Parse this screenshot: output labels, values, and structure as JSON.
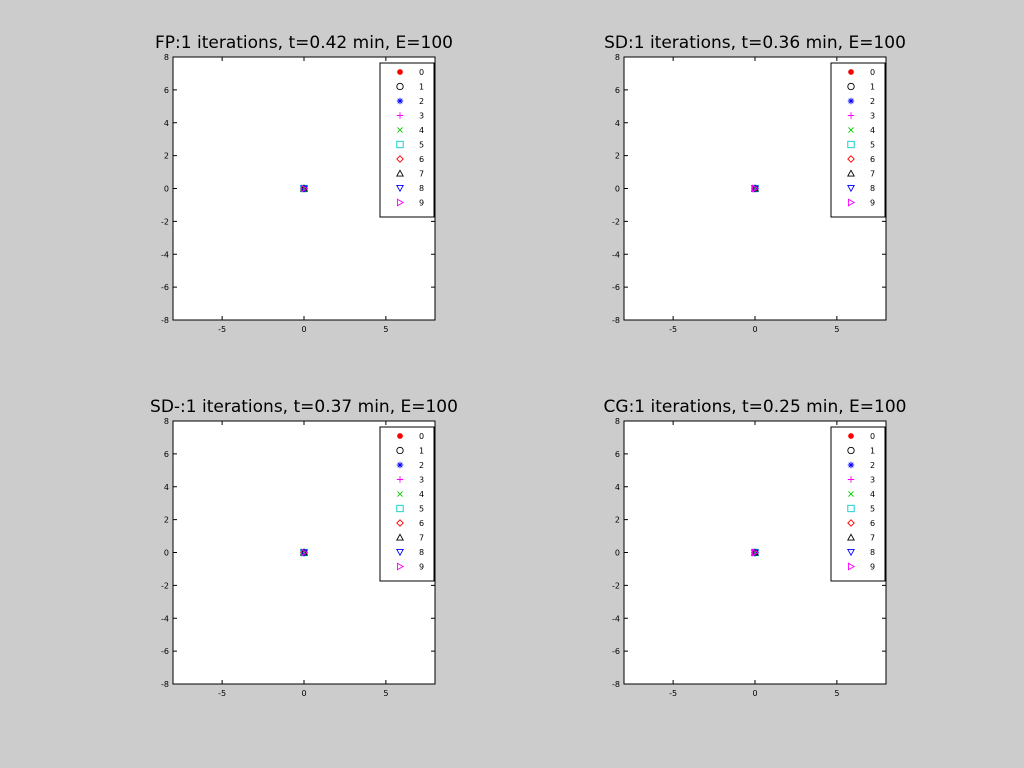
{
  "window": {
    "background": "#cccccc"
  },
  "chart_data": [
    {
      "type": "scatter",
      "title": "FP:1 iterations, t=0.42 min, E=100",
      "xlim": [
        -8,
        8
      ],
      "ylim": [
        -8,
        8
      ],
      "xticks": [
        -5,
        0,
        5
      ],
      "yticks": [
        8,
        6,
        4,
        2,
        0,
        -2,
        -4,
        -6,
        -8
      ],
      "grid": false,
      "legend_position": "top-right",
      "series": [
        {
          "name": "0",
          "marker": "filled-circle",
          "color": "#ff0000",
          "points": [
            [
              0,
              0
            ]
          ]
        },
        {
          "name": "1",
          "marker": "circle",
          "color": "#000000",
          "points": [
            [
              0,
              0
            ]
          ]
        },
        {
          "name": "2",
          "marker": "asterisk",
          "color": "#0000ff",
          "points": [
            [
              0,
              0
            ]
          ]
        },
        {
          "name": "3",
          "marker": "plus",
          "color": "#ff00ff",
          "points": [
            [
              0,
              0
            ]
          ]
        },
        {
          "name": "4",
          "marker": "cross",
          "color": "#00cc00",
          "points": [
            [
              0,
              0
            ]
          ]
        },
        {
          "name": "5",
          "marker": "square",
          "color": "#00cccc",
          "points": [
            [
              0,
              0
            ]
          ]
        },
        {
          "name": "6",
          "marker": "diamond",
          "color": "#ff0000",
          "points": [
            [
              0,
              0
            ]
          ]
        },
        {
          "name": "7",
          "marker": "triangle-up",
          "color": "#000000",
          "points": [
            [
              0,
              0
            ]
          ]
        },
        {
          "name": "8",
          "marker": "triangle-down",
          "color": "#0000ff",
          "points": [
            [
              0,
              0
            ]
          ]
        },
        {
          "name": "9",
          "marker": "triangle-right",
          "color": "#ff00ff",
          "points": [
            [
              0,
              0
            ]
          ]
        }
      ]
    },
    {
      "type": "scatter",
      "title": "SD:1 iterations, t=0.36 min, E=100",
      "xlim": [
        -8,
        8
      ],
      "ylim": [
        -8,
        8
      ],
      "xticks": [
        -5,
        0,
        5
      ],
      "yticks": [
        8,
        6,
        4,
        2,
        0,
        -2,
        -4,
        -6,
        -8
      ],
      "grid": false,
      "legend_position": "top-right",
      "series": [
        {
          "name": "0",
          "marker": "filled-circle",
          "color": "#ff0000",
          "points": [
            [
              0,
              0
            ]
          ]
        },
        {
          "name": "1",
          "marker": "circle",
          "color": "#000000",
          "points": [
            [
              0,
              0
            ]
          ]
        },
        {
          "name": "2",
          "marker": "asterisk",
          "color": "#0000ff",
          "points": [
            [
              0,
              0
            ]
          ]
        },
        {
          "name": "3",
          "marker": "plus",
          "color": "#ff00ff",
          "points": [
            [
              0,
              0
            ]
          ]
        },
        {
          "name": "4",
          "marker": "cross",
          "color": "#00cc00",
          "points": [
            [
              0,
              0
            ]
          ]
        },
        {
          "name": "5",
          "marker": "square",
          "color": "#00cccc",
          "points": [
            [
              0,
              0
            ]
          ]
        },
        {
          "name": "6",
          "marker": "diamond",
          "color": "#ff0000",
          "points": [
            [
              0,
              0
            ]
          ]
        },
        {
          "name": "7",
          "marker": "triangle-up",
          "color": "#000000",
          "points": [
            [
              0,
              0
            ]
          ]
        },
        {
          "name": "8",
          "marker": "triangle-down",
          "color": "#0000ff",
          "points": [
            [
              0,
              0
            ]
          ]
        },
        {
          "name": "9",
          "marker": "triangle-right",
          "color": "#ff00ff",
          "points": [
            [
              0,
              0
            ]
          ]
        }
      ]
    },
    {
      "type": "scatter",
      "title": "SD-:1 iterations, t=0.37 min, E=100",
      "xlim": [
        -8,
        8
      ],
      "ylim": [
        -8,
        8
      ],
      "xticks": [
        -5,
        0,
        5
      ],
      "yticks": [
        8,
        6,
        4,
        2,
        0,
        -2,
        -4,
        -6,
        -8
      ],
      "grid": false,
      "legend_position": "top-right",
      "series": [
        {
          "name": "0",
          "marker": "filled-circle",
          "color": "#ff0000",
          "points": [
            [
              0,
              0
            ]
          ]
        },
        {
          "name": "1",
          "marker": "circle",
          "color": "#000000",
          "points": [
            [
              0,
              0
            ]
          ]
        },
        {
          "name": "2",
          "marker": "asterisk",
          "color": "#0000ff",
          "points": [
            [
              0,
              0
            ]
          ]
        },
        {
          "name": "3",
          "marker": "plus",
          "color": "#ff00ff",
          "points": [
            [
              0,
              0
            ]
          ]
        },
        {
          "name": "4",
          "marker": "cross",
          "color": "#00cc00",
          "points": [
            [
              0,
              0
            ]
          ]
        },
        {
          "name": "5",
          "marker": "square",
          "color": "#00cccc",
          "points": [
            [
              0,
              0
            ]
          ]
        },
        {
          "name": "6",
          "marker": "diamond",
          "color": "#ff0000",
          "points": [
            [
              0,
              0
            ]
          ]
        },
        {
          "name": "7",
          "marker": "triangle-up",
          "color": "#000000",
          "points": [
            [
              0,
              0
            ]
          ]
        },
        {
          "name": "8",
          "marker": "triangle-down",
          "color": "#0000ff",
          "points": [
            [
              0,
              0
            ]
          ]
        },
        {
          "name": "9",
          "marker": "triangle-right",
          "color": "#ff00ff",
          "points": [
            [
              0,
              0
            ]
          ]
        }
      ]
    },
    {
      "type": "scatter",
      "title": "CG:1 iterations, t=0.25 min, E=100",
      "xlim": [
        -8,
        8
      ],
      "ylim": [
        -8,
        8
      ],
      "xticks": [
        -5,
        0,
        5
      ],
      "yticks": [
        8,
        6,
        4,
        2,
        0,
        -2,
        -4,
        -6,
        -8
      ],
      "grid": false,
      "legend_position": "top-right",
      "series": [
        {
          "name": "0",
          "marker": "filled-circle",
          "color": "#ff0000",
          "points": [
            [
              0,
              0
            ]
          ]
        },
        {
          "name": "1",
          "marker": "circle",
          "color": "#000000",
          "points": [
            [
              0,
              0
            ]
          ]
        },
        {
          "name": "2",
          "marker": "asterisk",
          "color": "#0000ff",
          "points": [
            [
              0,
              0
            ]
          ]
        },
        {
          "name": "3",
          "marker": "plus",
          "color": "#ff00ff",
          "points": [
            [
              0,
              0
            ]
          ]
        },
        {
          "name": "4",
          "marker": "cross",
          "color": "#00cc00",
          "points": [
            [
              0,
              0
            ]
          ]
        },
        {
          "name": "5",
          "marker": "square",
          "color": "#00cccc",
          "points": [
            [
              0,
              0
            ]
          ]
        },
        {
          "name": "6",
          "marker": "diamond",
          "color": "#ff0000",
          "points": [
            [
              0,
              0
            ]
          ]
        },
        {
          "name": "7",
          "marker": "triangle-up",
          "color": "#000000",
          "points": [
            [
              0,
              0
            ]
          ]
        },
        {
          "name": "8",
          "marker": "triangle-down",
          "color": "#0000ff",
          "points": [
            [
              0,
              0
            ]
          ]
        },
        {
          "name": "9",
          "marker": "triangle-right",
          "color": "#ff00ff",
          "points": [
            [
              0,
              0
            ]
          ]
        }
      ]
    }
  ]
}
